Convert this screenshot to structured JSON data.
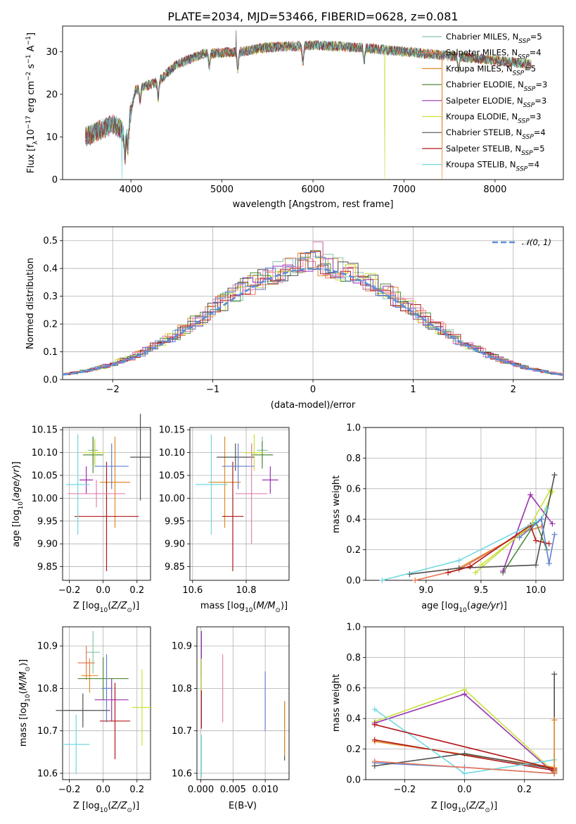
{
  "colors": [
    "#88c4a8",
    "#e87858",
    "#e08a28",
    "#4f8a3c",
    "#9930b0",
    "#c8e040",
    "#505050",
    "#b01818",
    "#70d8e0"
  ],
  "chart_data": [
    {
      "id": "spectrum",
      "type": "line",
      "title": "PLATE=2034, MJD=53466, FIBERID=0628, z=0.081",
      "xlabel": "wavelength [Angstrom, rest frame]",
      "ylabel": "Flux [f",
      "xlim": [
        3250,
        8750
      ],
      "ylim": [
        0,
        36
      ],
      "xticks": [
        4000,
        5000,
        6000,
        7000,
        8000
      ],
      "yticks": [
        0,
        10,
        20,
        30
      ],
      "grid": false,
      "legend_position": "top-right",
      "legend": [
        {
          "name": "Chabrier MILES",
          "nssp": "5"
        },
        {
          "name": "Salpeter MILES",
          "nssp": "4"
        },
        {
          "name": "Kroupa MILES",
          "nssp": "5"
        },
        {
          "name": "Chabrier ELODIE",
          "nssp": "3"
        },
        {
          "name": "Salpeter ELODIE",
          "nssp": "3"
        },
        {
          "name": "Kroupa ELODIE",
          "nssp": "3"
        },
        {
          "name": "Chabrier STELIB",
          "nssp": "4"
        },
        {
          "name": "Salpeter STELIB",
          "nssp": "5"
        },
        {
          "name": "Kroupa STELIB",
          "nssp": "4"
        }
      ],
      "x_range": [
        3500,
        8400
      ],
      "y_envelope": [
        [
          3500,
          10
        ],
        [
          3800,
          13
        ],
        [
          3950,
          11
        ],
        [
          4050,
          21
        ],
        [
          4300,
          23
        ],
        [
          4500,
          27
        ],
        [
          4800,
          29.5
        ],
        [
          5200,
          30
        ],
        [
          5500,
          31
        ],
        [
          6000,
          31.5
        ],
        [
          6500,
          31
        ],
        [
          7000,
          30
        ],
        [
          7500,
          29
        ],
        [
          8000,
          28
        ],
        [
          8400,
          27
        ]
      ]
    },
    {
      "id": "residuals",
      "type": "histogram",
      "xlabel": "(data-model)/error",
      "ylabel": "Normed distribution",
      "xlim": [
        -2.5,
        2.5
      ],
      "ylim": [
        0,
        0.55
      ],
      "xticks": [
        -2,
        -1,
        0,
        1,
        2
      ],
      "yticks": [
        0.0,
        0.1,
        0.2,
        0.3,
        0.4,
        0.5
      ],
      "grid": true,
      "legend_position": "top-right",
      "legend": [
        "𝒩(0, 1)"
      ]
    },
    {
      "id": "age_vs_Z",
      "type": "errorbar",
      "xlabel": "Z [log",
      "ylabel": "age  [log",
      "xlim": [
        -0.24,
        0.28
      ],
      "ylim": [
        9.82,
        10.155
      ],
      "xticks": [
        -0.2,
        0.0,
        0.2
      ],
      "yticks": [
        9.85,
        9.9,
        9.95,
        10.0,
        10.05,
        10.1,
        10.15
      ],
      "points": [
        {
          "x": -0.06,
          "y": 10.105,
          "xerr": 0.03,
          "yerr": 0.03
        },
        {
          "x": -0.05,
          "y": 10.1,
          "xerr": 0.035,
          "yerr": 0.025
        },
        {
          "x": 0.07,
          "y": 10.035,
          "xerr": 0.09,
          "yerr": 0.1
        },
        {
          "x": -0.06,
          "y": 10.095,
          "xerr": 0.06,
          "yerr": 0.04
        },
        {
          "x": -0.1,
          "y": 10.04,
          "xerr": 0.04,
          "yerr": 0.03
        },
        {
          "x": -0.05,
          "y": 10.1,
          "xerr": 0.06,
          "yerr": 0.03
        },
        {
          "x": 0.22,
          "y": 10.09,
          "xerr": 0.06,
          "yerr": 0.095
        },
        {
          "x": 0.02,
          "y": 9.96,
          "xerr": 0.19,
          "yerr": 0.12
        },
        {
          "x": -0.15,
          "y": 10.03,
          "xerr": 0.07,
          "yerr": 0.11
        },
        {
          "x": 0.05,
          "y": 10.07,
          "xerr": 0.1,
          "yerr": 0.05
        },
        {
          "x": -0.04,
          "y": 10.01,
          "xerr": 0.17,
          "yerr": 0.03
        }
      ]
    },
    {
      "id": "age_vs_mass",
      "type": "errorbar",
      "xlabel": "mass [log",
      "ylabel": "",
      "xlim": [
        10.59,
        10.96
      ],
      "ylim": [
        9.82,
        10.155
      ],
      "xticks": [
        10.6,
        10.8
      ],
      "yticks": [
        9.85,
        9.9,
        9.95,
        10.0,
        10.05,
        10.1,
        10.15
      ],
      "points": [
        {
          "x": 10.86,
          "y": 10.105,
          "xerr": 0.02,
          "yerr": 0.03
        },
        {
          "x": 10.82,
          "y": 10.1,
          "xerr": 0.02,
          "yerr": 0.02
        },
        {
          "x": 10.72,
          "y": 10.035,
          "xerr": 0.06,
          "yerr": 0.1
        },
        {
          "x": 10.86,
          "y": 10.095,
          "xerr": 0.04,
          "yerr": 0.03
        },
        {
          "x": 10.89,
          "y": 10.04,
          "xerr": 0.03,
          "yerr": 0.03
        },
        {
          "x": 10.83,
          "y": 10.1,
          "xerr": 0.04,
          "yerr": 0.04
        },
        {
          "x": 10.76,
          "y": 10.09,
          "xerr": 0.07,
          "yerr": 0.03
        },
        {
          "x": 10.75,
          "y": 9.96,
          "xerr": 0.04,
          "yerr": 0.12
        },
        {
          "x": 10.67,
          "y": 10.03,
          "xerr": 0.06,
          "yerr": 0.11
        },
        {
          "x": 10.77,
          "y": 10.07,
          "xerr": 0.06,
          "yerr": 0.05
        },
        {
          "x": 10.82,
          "y": 10.01,
          "xerr": 0.06,
          "yerr": 0.11
        }
      ]
    },
    {
      "id": "weight_vs_age",
      "type": "line",
      "xlabel": "age  [log",
      "ylabel": "mass weight",
      "xlim": [
        8.45,
        10.25
      ],
      "ylim": [
        0,
        1.0
      ],
      "xticks": [
        9.0,
        9.5,
        10.0
      ],
      "yticks": [
        0.0,
        0.2,
        0.4,
        0.6,
        0.8,
        1.0
      ],
      "grid": true,
      "series": [
        {
          "x": [
            9.5,
            9.95,
            10.05,
            10.15
          ],
          "y": [
            0.1,
            0.35,
            0.4,
            0.58
          ]
        },
        {
          "x": [
            9.3,
            9.85,
            10.0
          ],
          "y": [
            0.08,
            0.3,
            0.38
          ]
        },
        {
          "x": [
            8.9,
            9.3,
            9.9,
            10.05
          ],
          "y": [
            0.0,
            0.07,
            0.32,
            0.35
          ]
        },
        {
          "x": [
            9.7,
            10.0,
            10.1
          ],
          "y": [
            0.05,
            0.38,
            0.2
          ]
        },
        {
          "x": [
            9.7,
            9.95,
            10.15
          ],
          "y": [
            0.06,
            0.56,
            0.37
          ]
        },
        {
          "x": [
            9.45,
            9.95,
            10.13
          ],
          "y": [
            0.05,
            0.36,
            0.59
          ]
        },
        {
          "x": [
            8.85,
            9.3,
            10.0,
            10.17
          ],
          "y": [
            0.04,
            0.08,
            0.1,
            0.69
          ]
        },
        {
          "x": [
            9.2,
            9.4,
            9.95,
            10.0,
            10.12
          ],
          "y": [
            0.05,
            0.09,
            0.36,
            0.26,
            0.24
          ]
        },
        {
          "x": [
            8.6,
            9.3,
            10.05,
            10.1
          ],
          "y": [
            0.0,
            0.13,
            0.4,
            0.47
          ]
        },
        {
          "x": [
            9.85,
            10.05,
            10.12,
            10.17
          ],
          "y": [
            0.28,
            0.4,
            0.11,
            0.3
          ]
        }
      ]
    },
    {
      "id": "mass_vs_Z",
      "type": "errorbar",
      "xlabel": "Z [log",
      "ylabel": "mass [log",
      "xlim": [
        -0.24,
        0.28
      ],
      "ylim": [
        10.585,
        10.945
      ],
      "xticks": [
        -0.2,
        0.0,
        0.2
      ],
      "yticks": [
        10.6,
        10.7,
        10.8,
        10.9
      ],
      "points": [
        {
          "x": -0.06,
          "y": 10.885,
          "xerr": 0.04,
          "yerr": 0.05
        },
        {
          "x": -0.1,
          "y": 10.86,
          "xerr": 0.05,
          "yerr": 0.04
        },
        {
          "x": -0.08,
          "y": 10.83,
          "xerr": 0.05,
          "yerr": 0.04
        },
        {
          "x": 0.0,
          "y": 10.823,
          "xerr": 0.15,
          "yerr": 0.05
        },
        {
          "x": 0.05,
          "y": 10.773,
          "xerr": 0.1,
          "yerr": 0.05
        },
        {
          "x": 0.23,
          "y": 10.755,
          "xerr": 0.06,
          "yerr": 0.09
        },
        {
          "x": -0.12,
          "y": 10.748,
          "xerr": 0.16,
          "yerr": 0.04
        },
        {
          "x": 0.07,
          "y": 10.723,
          "xerr": 0.09,
          "yerr": 0.09
        },
        {
          "x": -0.16,
          "y": 10.668,
          "xerr": 0.08,
          "yerr": 0.07
        },
        {
          "x": 0.02,
          "y": 10.8,
          "xerr": 0.03,
          "yerr": 0.08
        }
      ]
    },
    {
      "id": "mass_vs_ebv",
      "type": "errorbar",
      "xlabel": "E(B-V)",
      "ylabel": "",
      "xlim": [
        -0.0006,
        0.0137
      ],
      "ylim": [
        10.585,
        10.945
      ],
      "xticks": [
        0.0,
        0.005,
        0.01
      ],
      "xtick_labels": [
        "0.000",
        "0.005",
        "0.010"
      ],
      "yticks": [
        10.6,
        10.7,
        10.8,
        10.9
      ],
      "points": [
        {
          "x": 0.0001,
          "y": 10.88,
          "xerr": 0.0,
          "yerr": 0.055
        },
        {
          "x": 0.0001,
          "y": 10.82,
          "xerr": 0.0,
          "yerr": 0.05
        },
        {
          "x": 0.0001,
          "y": 10.75,
          "xerr": 0.0,
          "yerr": 0.045
        },
        {
          "x": 0.0001,
          "y": 10.64,
          "xerr": 0.0,
          "yerr": 0.05
        },
        {
          "x": 0.0034,
          "y": 10.8,
          "xerr": 0.0,
          "yerr": 0.08
        },
        {
          "x": 0.01,
          "y": 10.77,
          "xerr": 0.0,
          "yerr": 0.07
        },
        {
          "x": 0.013,
          "y": 10.7,
          "xerr": 0.0,
          "yerr": 0.07
        },
        {
          "x": 0.013,
          "y": 10.705,
          "xerr": 0.0,
          "yerr": 0.065
        }
      ]
    },
    {
      "id": "weight_vs_Z",
      "type": "line",
      "xlabel": "Z [log",
      "ylabel": "mass weight",
      "xlim": [
        -0.33,
        0.33
      ],
      "ylim": [
        0,
        1.0
      ],
      "xticks": [
        -0.2,
        0.0,
        0.2
      ],
      "yticks": [
        0.0,
        0.2,
        0.4,
        0.6,
        0.8,
        1.0
      ],
      "grid": true,
      "series": [
        {
          "x": [
            -0.3,
            0.0,
            0.3
          ],
          "y": [
            0.38,
            0.59,
            0.05
          ]
        },
        {
          "x": [
            -0.3,
            0.0,
            0.3
          ],
          "y": [
            0.37,
            0.56,
            0.04
          ]
        },
        {
          "x": [
            -0.3,
            0.3
          ],
          "y": [
            0.36,
            0.07
          ]
        },
        {
          "x": [
            -0.3,
            0.3
          ],
          "y": [
            0.25,
            0.08
          ]
        },
        {
          "x": [
            -0.3,
            0.3
          ],
          "y": [
            0.26,
            0.06
          ]
        },
        {
          "x": [
            -0.3,
            0.0,
            0.3
          ],
          "y": [
            0.11,
            0.08,
            0.04
          ]
        },
        {
          "x": [
            -0.3,
            0.0,
            0.3
          ],
          "y": [
            0.09,
            0.17,
            0.07
          ]
        },
        {
          "x": [
            -0.3,
            0.0,
            0.3
          ],
          "y": [
            0.46,
            0.04,
            0.13
          ]
        },
        {
          "x": [
            -0.3,
            0.3
          ],
          "y": [
            0.12,
            0.04
          ]
        },
        {
          "x": [
            -0.3,
            0.3
          ],
          "y": [
            0.36,
            0.07
          ]
        },
        {
          "x": [
            0.3,
            0.3
          ],
          "y": [
            0.05,
            0.69
          ]
        },
        {
          "x": [
            0.3,
            0.3
          ],
          "y": [
            0.05,
            0.39
          ]
        }
      ]
    }
  ]
}
